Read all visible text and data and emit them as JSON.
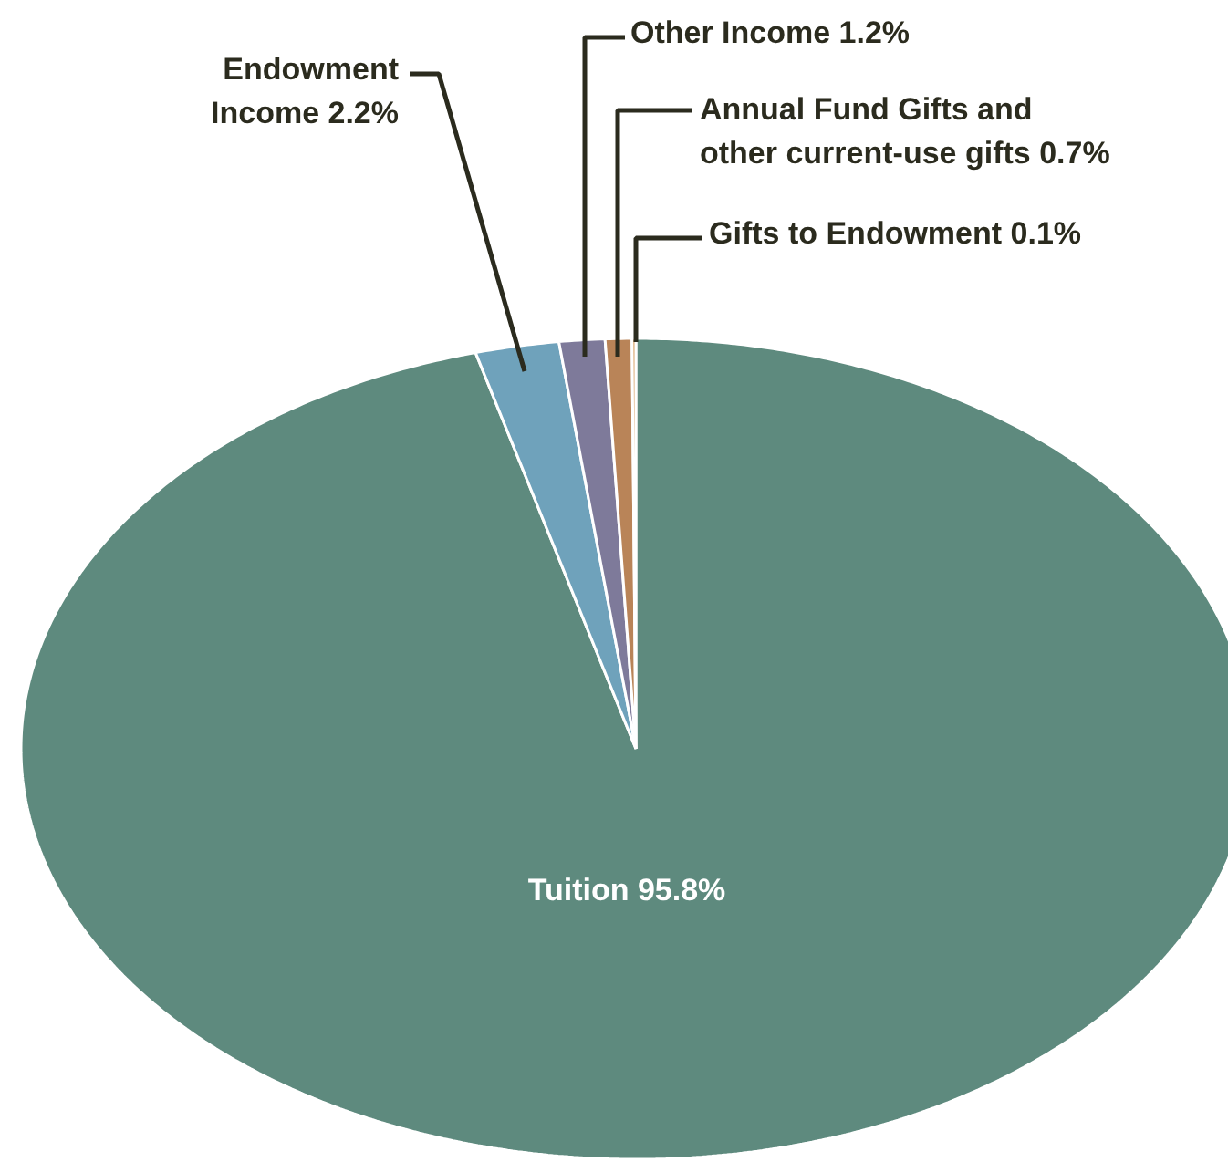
{
  "chart_data": {
    "type": "pie",
    "categories": [
      "Tuition",
      "Endowment Income",
      "Other Income",
      "Annual Fund Gifts and other current-use gifts",
      "Gifts to Endowment"
    ],
    "values": [
      95.8,
      2.2,
      1.2,
      0.7,
      0.1
    ],
    "colors": [
      "#5e8a7e",
      "#6fa2bb",
      "#7e7a9a",
      "#b98458",
      "#d7a267"
    ],
    "value_labels": [
      "95.8%",
      "2.2%",
      "1.2%",
      "0.7%",
      "0.1%"
    ]
  }
}
